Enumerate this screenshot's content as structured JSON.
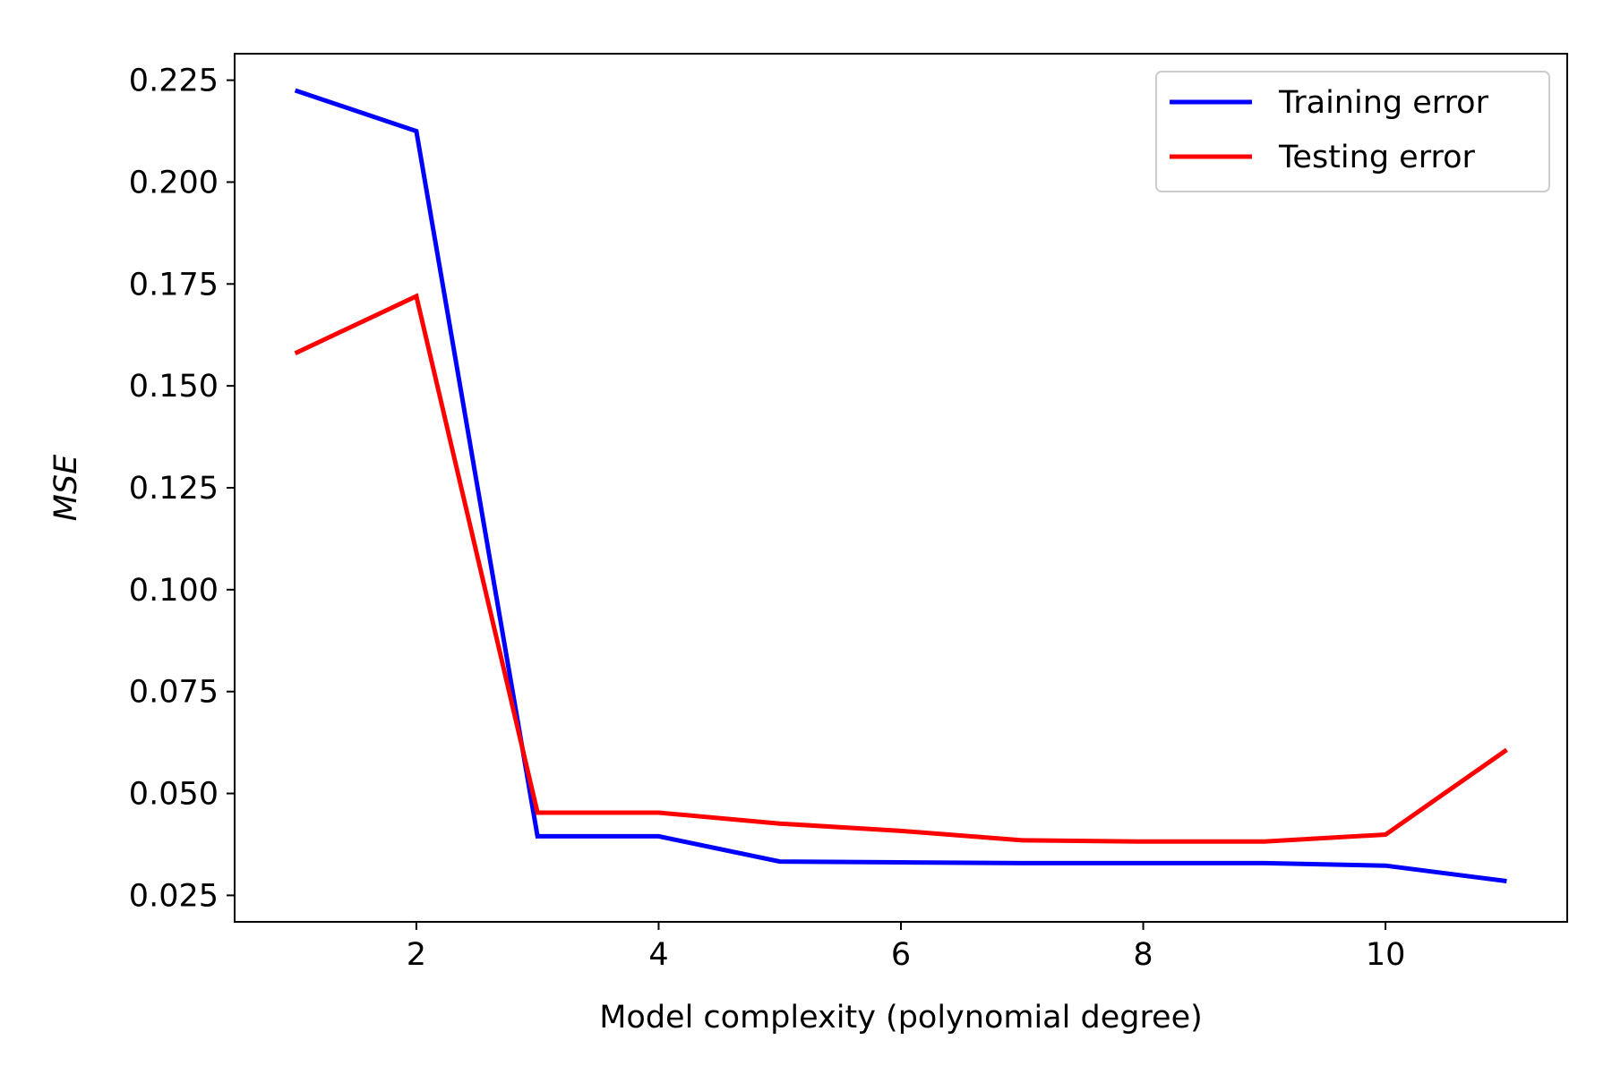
{
  "chart_data": {
    "type": "line",
    "title": "",
    "xlabel": "Model complexity (polynomial degree)",
    "ylabel": "MSE",
    "xlim": [
      0.5,
      11.5
    ],
    "ylim": [
      0.0185,
      0.2315
    ],
    "xticks": [
      2,
      4,
      6,
      8,
      10
    ],
    "xtick_labels": [
      "2",
      "4",
      "6",
      "8",
      "10"
    ],
    "yticks": [
      0.025,
      0.05,
      0.075,
      0.1,
      0.125,
      0.15,
      0.175,
      0.2,
      0.225
    ],
    "ytick_labels": [
      "0.025",
      "0.050",
      "0.075",
      "0.100",
      "0.125",
      "0.150",
      "0.175",
      "0.200",
      "0.225"
    ],
    "grid": false,
    "legend_position": "top-right",
    "x": [
      1,
      2,
      3,
      4,
      5,
      6,
      7,
      8,
      9,
      10,
      11
    ],
    "series": [
      {
        "name": "Training error",
        "color": "#0000ff",
        "values": [
          0.2225,
          0.2125,
          0.0395,
          0.0395,
          0.0333,
          0.0331,
          0.0329,
          0.0329,
          0.0329,
          0.0323,
          0.0285
        ]
      },
      {
        "name": "Testing error",
        "color": "#ff0000",
        "values": [
          0.158,
          0.172,
          0.0453,
          0.0453,
          0.0426,
          0.0408,
          0.0385,
          0.0382,
          0.0382,
          0.0399,
          0.0607
        ]
      }
    ]
  }
}
